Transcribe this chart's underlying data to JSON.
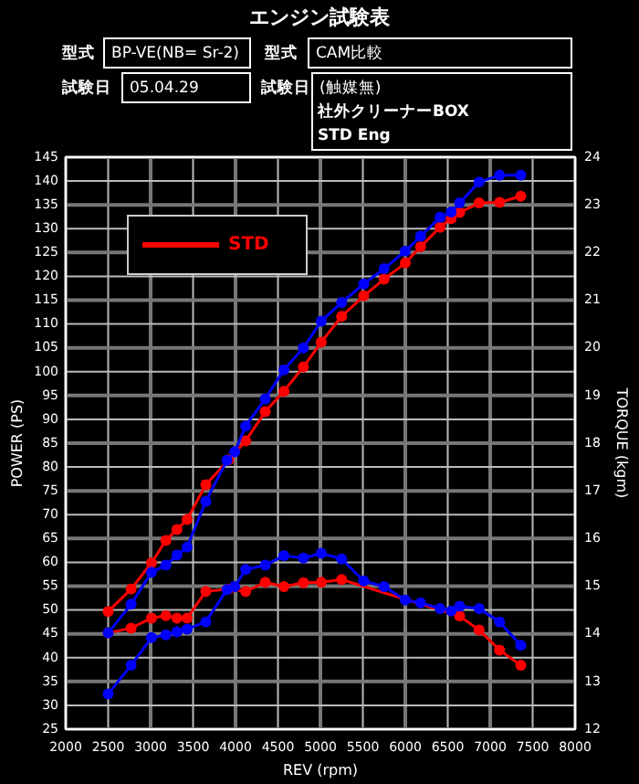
{
  "chart_data": {
    "type": "line",
    "title": "エンジン試験表",
    "annotations": [
      "型式",
      "BP-VE(NB= Sr-2)",
      "型式",
      "CAM比較",
      "試験日",
      "05.04.29",
      "試験日",
      "(触媒無)",
      "社外クリーナーBOX",
      "STD Eng"
    ],
    "xlabel": "REV (rpm)",
    "ylabel": "POWER (PS)",
    "y2label": "TORQUE (kgm)",
    "xlim": [
      2000,
      8000
    ],
    "xticks": [
      2000,
      2500,
      3000,
      3500,
      4000,
      4500,
      5000,
      5500,
      6000,
      6500,
      7000,
      7500,
      8000
    ],
    "ylim": [
      25,
      145
    ],
    "yticks": [
      25,
      30,
      35,
      40,
      45,
      50,
      55,
      60,
      65,
      70,
      75,
      80,
      85,
      90,
      95,
      100,
      105,
      110,
      115,
      120,
      125,
      130,
      135,
      140,
      145
    ],
    "y2lim": [
      12,
      24
    ],
    "y2ticks": [
      12,
      13,
      14,
      15,
      16,
      17,
      18,
      19,
      20,
      21,
      22,
      23,
      24
    ],
    "grid": true,
    "legend": "top left",
    "marker": "circle",
    "line_style": "solid",
    "series": [
      {
        "name": "STD",
        "color": "#ff0000",
        "x": [
          2500,
          2770,
          3010,
          3180,
          3310,
          3430,
          3650,
          3920,
          4120,
          4350,
          4570,
          4800,
          5010,
          5250,
          5510,
          5750,
          6000,
          6180,
          6410,
          6540,
          6640,
          6870,
          7110,
          7360
        ],
        "values": [
          49.7,
          54.4,
          59.9,
          64.6,
          66.9,
          69.0,
          76.3,
          81.5,
          85.5,
          91.6,
          95.9,
          101.0,
          106.2,
          111.6,
          115.9,
          119.4,
          122.8,
          126.2,
          130.3,
          132.1,
          133.4,
          135.4,
          135.5,
          136.8
        ]
      },
      {
        "color": "#ff0000",
        "axis": "y2",
        "x": [
          2500,
          2770,
          3010,
          3180,
          3310,
          3430,
          3650,
          3920,
          4120,
          4350,
          4570,
          4800,
          5010,
          5250,
          6640,
          6870,
          7110,
          7360
        ],
        "values": [
          14.02,
          14.12,
          14.33,
          14.38,
          14.33,
          14.33,
          14.89,
          14.94,
          14.89,
          15.08,
          14.99,
          15.07,
          15.08,
          15.14,
          14.37,
          14.08,
          13.66,
          13.34
        ]
      },
      {
        "color": "#0000ff",
        "x": [
          2500,
          2770,
          3010,
          3180,
          3310,
          3430,
          3650,
          3900,
          3990,
          4120,
          4350,
          4570,
          4800,
          5010,
          5250,
          5510,
          5750,
          6000,
          6180,
          6410,
          6540,
          6640,
          6870,
          7110,
          7360
        ],
        "values": [
          45.2,
          51.2,
          57.9,
          59.4,
          61.5,
          63.2,
          72.8,
          81.4,
          83.2,
          88.6,
          94.3,
          100.4,
          105.0,
          110.6,
          114.5,
          118.4,
          121.6,
          125.3,
          128.4,
          132.4,
          133.5,
          135.4,
          139.8,
          141.2,
          141.2
        ]
      },
      {
        "color": "#0000ff",
        "axis": "y2",
        "x": [
          2500,
          2770,
          3010,
          3180,
          3310,
          3430,
          3650,
          3900,
          3990,
          4120,
          4350,
          4570,
          4800,
          5010,
          5250,
          5510,
          5750,
          6000,
          6180,
          6410,
          6540,
          6640,
          6870,
          7110,
          7360
        ],
        "values": [
          12.74,
          13.34,
          13.92,
          13.98,
          14.04,
          14.1,
          14.25,
          14.93,
          14.99,
          15.35,
          15.44,
          15.64,
          15.59,
          15.69,
          15.57,
          15.11,
          14.99,
          14.71,
          14.65,
          14.53,
          14.48,
          14.58,
          14.53,
          14.25,
          13.76
        ]
      }
    ]
  }
}
